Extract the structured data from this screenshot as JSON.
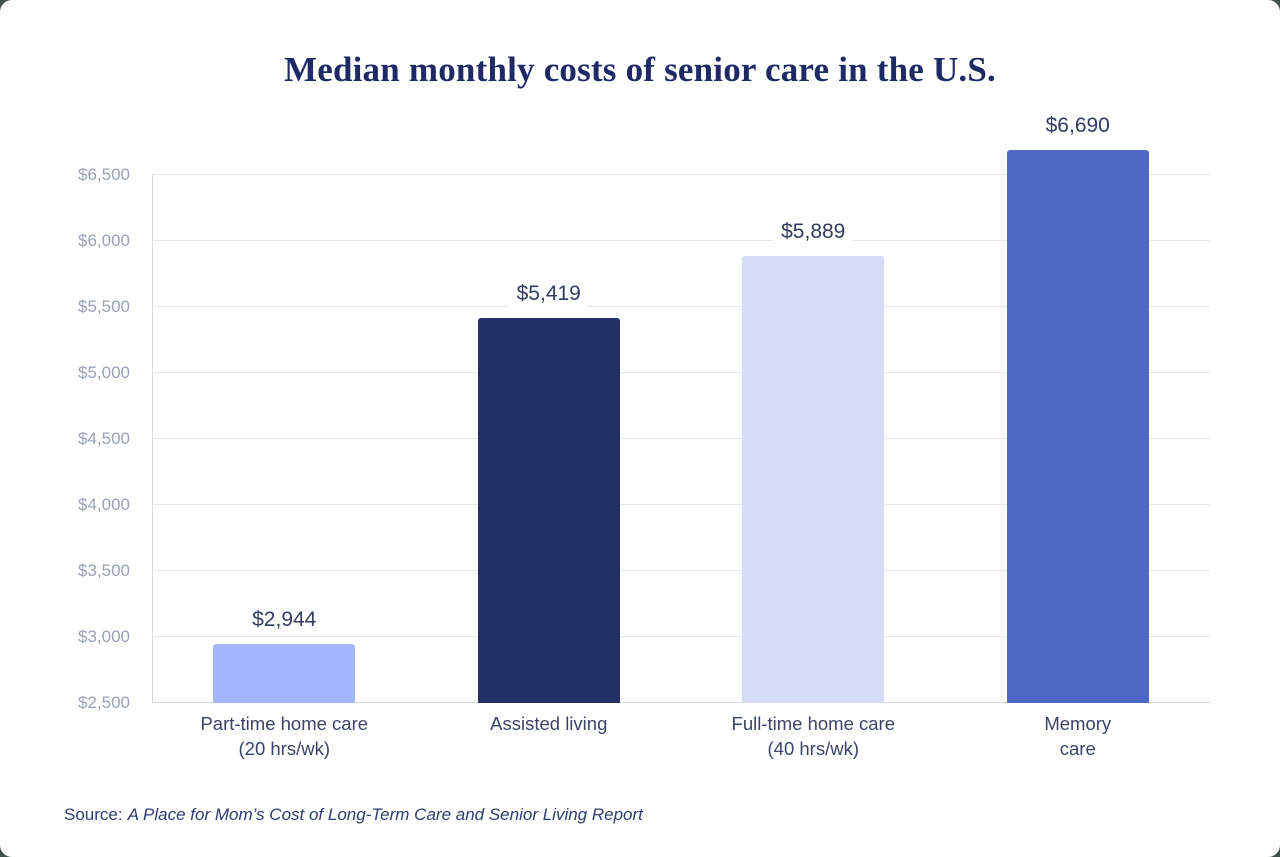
{
  "page": {
    "background_color": "#42504b",
    "card_color": "#ffffff"
  },
  "title": "Median monthly costs of senior care in the U.S.",
  "source": {
    "prefix": "Source:",
    "text": "A Place for Mom’s Cost of Long-Term Care and Senior Living Report"
  },
  "chart_data": {
    "type": "bar",
    "title": "Median monthly costs of senior care in the U.S.",
    "categories": [
      "Part-time home care (20 hrs/wk)",
      "Assisted living",
      "Full-time home care (40 hrs/wk)",
      "Memory care"
    ],
    "category_label_lines": [
      [
        "Part-time home care",
        "(20 hrs/wk)"
      ],
      [
        "Assisted living"
      ],
      [
        "Full-time home care",
        "(40 hrs/wk)"
      ],
      [
        "Memory",
        "care"
      ]
    ],
    "values": [
      2944,
      5419,
      5889,
      6690
    ],
    "value_labels": [
      "$2,944",
      "$5,419",
      "$5,889",
      "$6,690"
    ],
    "bar_colors": [
      "#a6b6fc",
      "#213066",
      "#d5dcfa",
      "#4e68c4"
    ],
    "xlabel": "",
    "ylabel": "",
    "ylim": [
      2500,
      6500
    ],
    "yticks": [
      2500,
      3000,
      3500,
      4000,
      4500,
      5000,
      5500,
      6000,
      6500
    ],
    "ytick_labels": [
      "$2,500",
      "$3,000",
      "$3,500",
      "$4,000",
      "$4,500",
      "$5,000",
      "$5,500",
      "$6,000",
      "$6,500"
    ],
    "grid": true,
    "legend": false,
    "colors": {
      "grid": "#e5e7ee",
      "axis": "#d5d8e0",
      "tick_label": "#99a1b5",
      "value_label": "#323c5e",
      "category_label": "#3a4468",
      "title": "#1d2a66",
      "source": "#2e3c6e"
    }
  }
}
